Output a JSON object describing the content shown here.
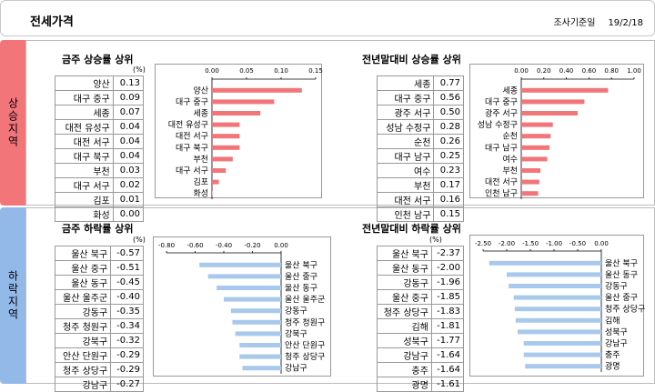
{
  "header": {
    "title": "전세가격",
    "date_label": "조사기준일",
    "date_value": "19/2/18"
  },
  "side": {
    "up": "상승지역",
    "down": "하락지역"
  },
  "panels": [
    {
      "id": "rise-week",
      "title": "금주 상승률 상위",
      "unit": "(%)",
      "rows": [
        {
          "label": "양산",
          "value": "0.13"
        },
        {
          "label": "대구 중구",
          "value": "0.09"
        },
        {
          "label": "세종",
          "value": "0.07"
        },
        {
          "label": "대전 유성구",
          "value": "0.04"
        },
        {
          "label": "대전 서구",
          "value": "0.04"
        },
        {
          "label": "대구 북구",
          "value": "0.04"
        },
        {
          "label": "부천",
          "value": "0.03"
        },
        {
          "label": "대구 서구",
          "value": "0.02"
        },
        {
          "label": "김포",
          "value": "0.01"
        },
        {
          "label": "화성",
          "value": "0.00"
        }
      ]
    },
    {
      "id": "rise-year",
      "title": "전년말대비 상승률 상위",
      "unit": "",
      "rows": [
        {
          "label": "세종",
          "value": "0.77"
        },
        {
          "label": "대구 중구",
          "value": "0.56"
        },
        {
          "label": "광주 서구",
          "value": "0.50"
        },
        {
          "label": "성남 수정구",
          "value": "0.28"
        },
        {
          "label": "순천",
          "value": "0.26"
        },
        {
          "label": "대구 남구",
          "value": "0.25"
        },
        {
          "label": "여수",
          "value": "0.23"
        },
        {
          "label": "부천",
          "value": "0.17"
        },
        {
          "label": "대전 서구",
          "value": "0.16"
        },
        {
          "label": "인천 남구",
          "value": "0.15"
        }
      ]
    },
    {
      "id": "fall-week",
      "title": "금주 하락률 상위",
      "unit": "(%)",
      "rows": [
        {
          "label": "울산 북구",
          "value": "-0.57"
        },
        {
          "label": "울산 중구",
          "value": "-0.51"
        },
        {
          "label": "울산 동구",
          "value": "-0.45"
        },
        {
          "label": "울산 울주군",
          "value": "-0.40"
        },
        {
          "label": "강동구",
          "value": "-0.35"
        },
        {
          "label": "청주 청원구",
          "value": "-0.34"
        },
        {
          "label": "강북구",
          "value": "-0.32"
        },
        {
          "label": "안산 단원구",
          "value": "-0.29"
        },
        {
          "label": "청주 상당구",
          "value": "-0.29"
        },
        {
          "label": "강남구",
          "value": "-0.27"
        }
      ]
    },
    {
      "id": "fall-year",
      "title": "전년말대비 하락률 상위",
      "unit": "(%)",
      "rows": [
        {
          "label": "울산 북구",
          "value": "-2.37"
        },
        {
          "label": "울산 동구",
          "value": "-2.00"
        },
        {
          "label": "강동구",
          "value": "-1.96"
        },
        {
          "label": "울산 중구",
          "value": "-1.85"
        },
        {
          "label": "청주 상당구",
          "value": "-1.83"
        },
        {
          "label": "김해",
          "value": "-1.81"
        },
        {
          "label": "성북구",
          "value": "-1.77"
        },
        {
          "label": "강남구",
          "value": "-1.64"
        },
        {
          "label": "충주",
          "value": "-1.64"
        },
        {
          "label": "광명",
          "value": "-1.61"
        }
      ]
    }
  ],
  "chart_data": [
    {
      "type": "bar",
      "orientation": "horizontal",
      "color": "#f2757a",
      "categories": [
        "양산",
        "대구 중구",
        "세종",
        "대전 유성구",
        "대전 서구",
        "대구 북구",
        "부천",
        "대구 서구",
        "김포",
        "화성"
      ],
      "values": [
        0.13,
        0.09,
        0.07,
        0.04,
        0.04,
        0.04,
        0.03,
        0.02,
        0.01,
        0.0
      ],
      "xlim": [
        0,
        0.15
      ],
      "ticks": [
        "0.00",
        "0.05",
        "0.10",
        "0.15"
      ]
    },
    {
      "type": "bar",
      "orientation": "horizontal",
      "color": "#f2757a",
      "categories": [
        "세종",
        "대구 중구",
        "광주 서구",
        "성남 수정구",
        "순천",
        "대구 남구",
        "여수",
        "부천",
        "대전 서구",
        "인천 남구"
      ],
      "values": [
        0.77,
        0.56,
        0.5,
        0.28,
        0.26,
        0.25,
        0.23,
        0.17,
        0.16,
        0.15
      ],
      "xlim": [
        0,
        1.0
      ],
      "ticks": [
        "0.00",
        "0.20",
        "0.40",
        "0.60",
        "0.80",
        "1.00"
      ]
    },
    {
      "type": "bar",
      "orientation": "horizontal",
      "color": "#a9c9ec",
      "categories": [
        "울산 북구",
        "울산 중구",
        "울산 동구",
        "울산 울주군",
        "강동구",
        "청주 청원구",
        "강북구",
        "안산 단원구",
        "청주 상당구",
        "강남구"
      ],
      "values": [
        -0.57,
        -0.51,
        -0.45,
        -0.4,
        -0.35,
        -0.34,
        -0.32,
        -0.29,
        -0.29,
        -0.27
      ],
      "xlim": [
        -0.8,
        0
      ],
      "ticks": [
        "-0.80",
        "-0.60",
        "-0.40",
        "-0.20",
        "0.00"
      ]
    },
    {
      "type": "bar",
      "orientation": "horizontal",
      "color": "#a9c9ec",
      "categories": [
        "울산 북구",
        "울산 동구",
        "강동구",
        "울산 중구",
        "청주 상당구",
        "김해",
        "성북구",
        "강남구",
        "충주",
        "광명"
      ],
      "values": [
        -2.37,
        -2.0,
        -1.96,
        -1.85,
        -1.83,
        -1.81,
        -1.77,
        -1.64,
        -1.64,
        -1.61
      ],
      "xlim": [
        -2.5,
        0
      ],
      "ticks": [
        "-2.50",
        "-2.00",
        "-1.50",
        "-1.00",
        "-0.50",
        "0.00"
      ]
    }
  ]
}
